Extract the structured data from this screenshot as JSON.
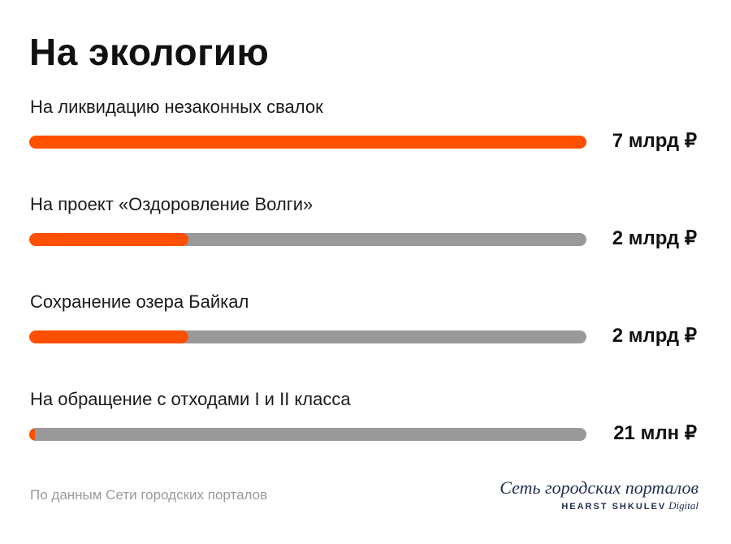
{
  "chart_data": {
    "type": "bar",
    "orientation": "horizontal",
    "title": "На экологию",
    "categories": [
      "На ликвидацию незаконных свалок",
      "На проект «Оздоровление Волги»",
      "Сохранение озера Байкал",
      "На обращение с отходами I и II класса"
    ],
    "values": [
      7000000000,
      2000000000,
      2000000000,
      21000000
    ],
    "value_labels": [
      "7 млрд ₽",
      "2 млрд ₽",
      "2 млрд ₽",
      "21 млн ₽"
    ],
    "unit": "₽",
    "xlim": [
      0,
      7000000000
    ],
    "grid": false,
    "legend": "none",
    "colors": {
      "fill": "#ff5000",
      "track": "#999999"
    }
  },
  "source": "По данным Сети городских порталов",
  "logo": {
    "main": "Сеть городских порталов",
    "brand": "HEARST SHKULEV",
    "digital": "Digital"
  }
}
